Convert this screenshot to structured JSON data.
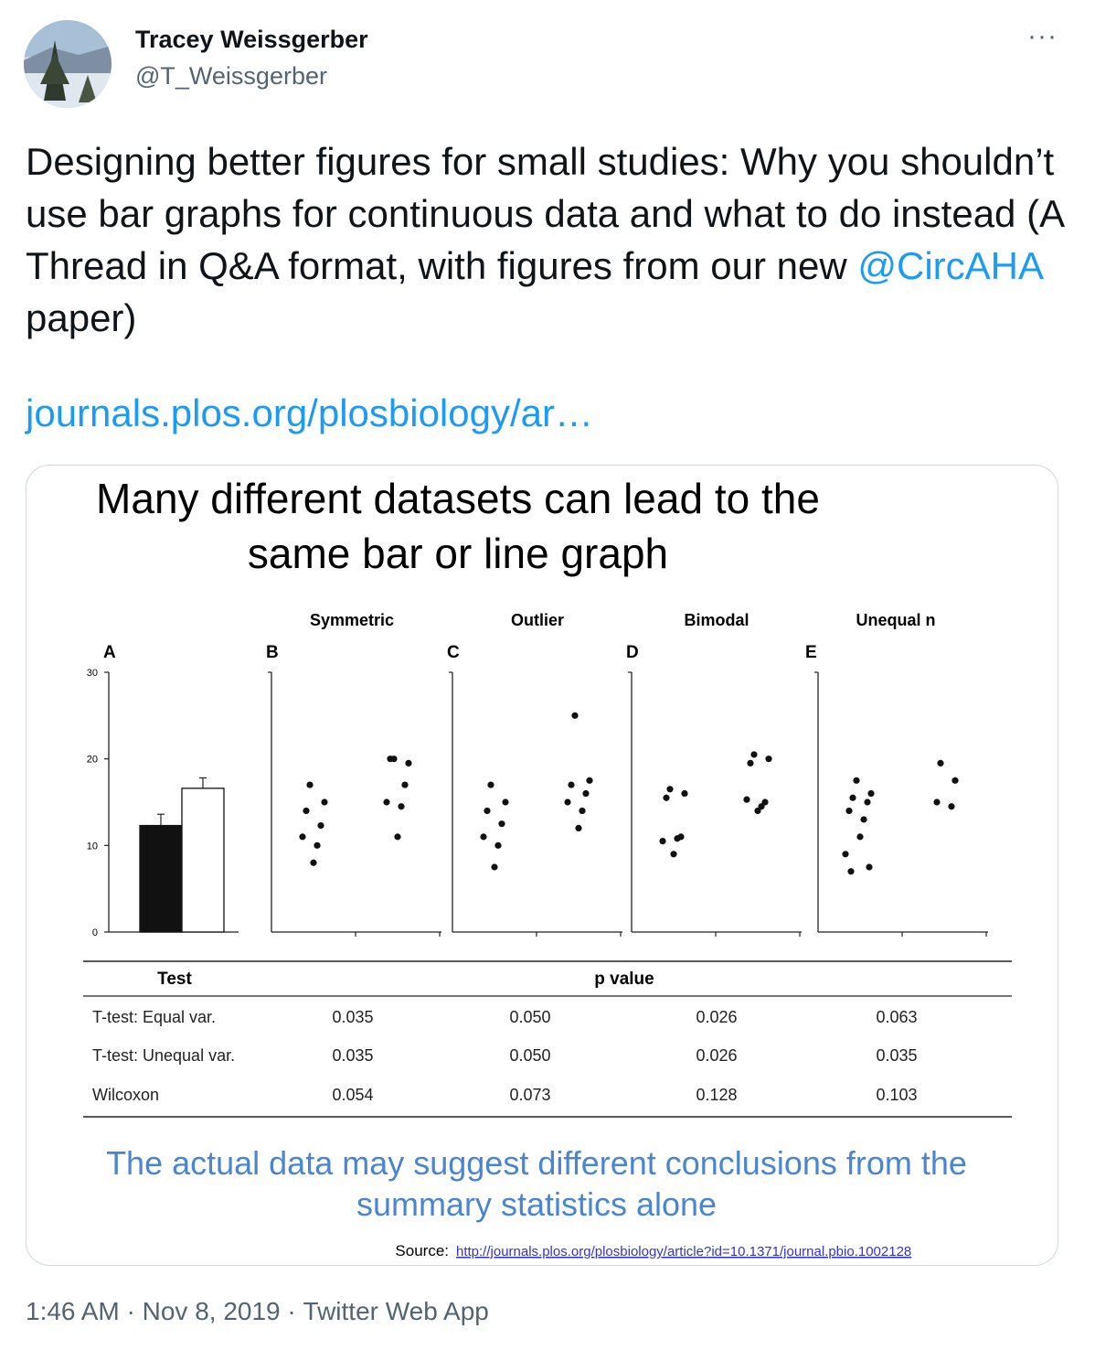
{
  "author": {
    "name": "Tracey Weissgerber",
    "handle": "@T_Weissgerber",
    "avatar_icon": "avatar-landscape-photo"
  },
  "more_icon": "more-icon",
  "more_label": "···",
  "tweet": {
    "text_before": "Designing better figures for small studies: Why you shouldn’t use bar graphs for continuous data and what to do instead (A Thread in Q&A format, with figures from our new ",
    "mention": "@CircAHA",
    "text_after": " paper)",
    "link": "journals.plos.org/plosbiology/ar…"
  },
  "media": {
    "title_line1": "Many different datasets can lead to the",
    "title_line2": "same bar or line graph",
    "panel_letters": [
      "A",
      "B",
      "C",
      "D",
      "E"
    ],
    "panel_titles": [
      "Symmetric",
      "Outlier",
      "Bimodal",
      "Unequal n"
    ],
    "conclusion_line1": "The actual data may suggest different conclusions from the",
    "conclusion_line2": "summary statistics alone",
    "source_label": "Source:",
    "source_url": "http://journals.plos.org/plosbiology/article?id=10.1371/journal.pbio.1002128",
    "colors": {
      "conclusion": "#4a86cf",
      "source_link": "#3333cc"
    }
  },
  "chart_data": [
    {
      "type": "bar",
      "panel": "A",
      "categories": [
        "",
        ""
      ],
      "values": [
        12.3,
        16.6
      ],
      "errors": [
        1.3,
        1.2
      ],
      "fills": [
        "#111111",
        "#ffffff"
      ],
      "ylim": [
        0,
        30
      ],
      "yticks": [
        "0",
        "10",
        "20",
        "30"
      ]
    },
    {
      "type": "scatter",
      "panel": "B",
      "title": "Symmetric",
      "ylim": [
        0,
        30
      ],
      "series": [
        {
          "values": [
            17,
            15,
            14,
            12.3,
            11,
            10,
            8
          ]
        },
        {
          "values": [
            20,
            19.5,
            20,
            17,
            15,
            14.5,
            11
          ]
        }
      ]
    },
    {
      "type": "scatter",
      "panel": "C",
      "title": "Outlier",
      "ylim": [
        0,
        30
      ],
      "series": [
        {
          "values": [
            17,
            15,
            14,
            12.5,
            11,
            10,
            7.5
          ]
        },
        {
          "values": [
            25,
            17.5,
            17,
            16,
            15,
            14,
            12
          ]
        }
      ]
    },
    {
      "type": "scatter",
      "panel": "D",
      "title": "Bimodal",
      "ylim": [
        0,
        30
      ],
      "series": [
        {
          "values": [
            16.5,
            16,
            15.5,
            11,
            10.5,
            10.8,
            9
          ]
        },
        {
          "values": [
            20.5,
            20,
            19.5,
            15,
            15.3,
            14.5,
            14
          ]
        }
      ]
    },
    {
      "type": "scatter",
      "panel": "E",
      "title": "Unequal n",
      "ylim": [
        0,
        30
      ],
      "series": [
        {
          "values": [
            17.5,
            16,
            15.5,
            15,
            14,
            13,
            11,
            9,
            7.5,
            7
          ]
        },
        {
          "values": [
            19.5,
            17.5,
            15,
            14.5
          ]
        }
      ]
    },
    {
      "type": "table",
      "headers": [
        "Test",
        "p value"
      ],
      "rows": [
        {
          "test": "T-test: Equal var.",
          "values": [
            "0.035",
            "0.050",
            "0.026",
            "0.063"
          ]
        },
        {
          "test": "T-test: Unequal var.",
          "values": [
            "0.035",
            "0.050",
            "0.026",
            "0.035"
          ]
        },
        {
          "test": "Wilcoxon",
          "values": [
            "0.054",
            "0.073",
            "0.128",
            "0.103"
          ]
        }
      ]
    }
  ],
  "meta": {
    "time": "1:46 AM",
    "separator": "·",
    "date": "Nov 8, 2019",
    "app": "Twitter Web App"
  }
}
